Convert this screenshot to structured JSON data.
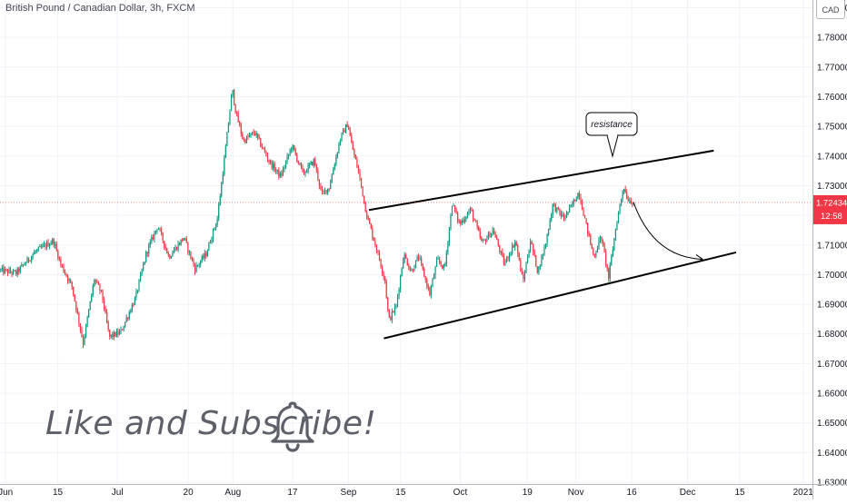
{
  "header": {
    "symbol_title": "British Pound / Canadian Dollar, 3h, FXCM",
    "currency": "CAD"
  },
  "price_tag": {
    "price": "1.72434",
    "countdown": "12:58",
    "color": "#f23645"
  },
  "annotations": {
    "callout": "resistance",
    "cta": "Like and Subscribe!",
    "bell_icon": "bell-icon"
  },
  "colors": {
    "up": "#089981",
    "down": "#f23645",
    "axis_text": "#131722",
    "grid": "#f0f3fa",
    "trendline": "#000000"
  },
  "chart_data": {
    "type": "candlestick",
    "title": "British Pound / Canadian Dollar, 3h, FXCM",
    "y_ticks": [
      "1.63000",
      "1.64000",
      "1.65000",
      "1.66000",
      "1.67000",
      "1.68000",
      "1.69000",
      "1.70000",
      "1.71000",
      "1.72000",
      "1.73000",
      "1.74000",
      "1.75000",
      "1.76000",
      "1.77000",
      "1.78000",
      "1.79000"
    ],
    "ylim": [
      1.6294,
      1.7926
    ],
    "x_ticks": [
      {
        "label": "Jun",
        "day": 0
      },
      {
        "label": "15",
        "day": 14
      },
      {
        "label": "Jul",
        "day": 30
      },
      {
        "label": "20",
        "day": 49
      },
      {
        "label": "Aug",
        "day": 61
      },
      {
        "label": "17",
        "day": 77
      },
      {
        "label": "Sep",
        "day": 92
      },
      {
        "label": "15",
        "day": 106
      },
      {
        "label": "Oct",
        "day": 122
      },
      {
        "label": "19",
        "day": 140
      },
      {
        "label": "Nov",
        "day": 153
      },
      {
        "label": "16",
        "day": 168
      },
      {
        "label": "Dec",
        "day": 183
      },
      {
        "label": "15",
        "day": 197
      },
      {
        "label": "2021",
        "day": 214
      }
    ],
    "xlim": [
      -1.5,
      216.5
    ],
    "price_path": [
      [
        -1.5,
        1.7015
      ],
      [
        3,
        1.7005
      ],
      [
        8,
        1.7075
      ],
      [
        13,
        1.7115
      ],
      [
        15,
        1.7035
      ],
      [
        18,
        1.696
      ],
      [
        21,
        1.677
      ],
      [
        24,
        1.6985
      ],
      [
        26,
        1.6935
      ],
      [
        28,
        1.679
      ],
      [
        31,
        1.6805
      ],
      [
        35,
        1.692
      ],
      [
        38,
        1.7075
      ],
      [
        41,
        1.7165
      ],
      [
        44,
        1.706
      ],
      [
        48,
        1.7125
      ],
      [
        51,
        1.702
      ],
      [
        54,
        1.707
      ],
      [
        57,
        1.719
      ],
      [
        59,
        1.74
      ],
      [
        61,
        1.7625
      ],
      [
        62,
        1.7545
      ],
      [
        64,
        1.745
      ],
      [
        67,
        1.748
      ],
      [
        69,
        1.743
      ],
      [
        71,
        1.738
      ],
      [
        74,
        1.733
      ],
      [
        77,
        1.7435
      ],
      [
        80,
        1.734
      ],
      [
        83,
        1.7385
      ],
      [
        85,
        1.727
      ],
      [
        87,
        1.7295
      ],
      [
        90,
        1.746
      ],
      [
        92,
        1.751
      ],
      [
        93,
        1.744
      ],
      [
        95,
        1.734
      ],
      [
        97,
        1.7205
      ],
      [
        100,
        1.7075
      ],
      [
        102,
        1.698
      ],
      [
        103,
        1.6845
      ],
      [
        105,
        1.6895
      ],
      [
        107,
        1.707
      ],
      [
        109,
        1.701
      ],
      [
        111,
        1.706
      ],
      [
        114,
        1.6935
      ],
      [
        116,
        1.705
      ],
      [
        118,
        1.702
      ],
      [
        120,
        1.724
      ],
      [
        122,
        1.717
      ],
      [
        125,
        1.722
      ],
      [
        128,
        1.7105
      ],
      [
        131,
        1.715
      ],
      [
        134,
        1.7035
      ],
      [
        137,
        1.7115
      ],
      [
        139,
        1.6975
      ],
      [
        141,
        1.7115
      ],
      [
        143,
        1.701
      ],
      [
        145,
        1.71
      ],
      [
        147,
        1.7235
      ],
      [
        150,
        1.719
      ],
      [
        152,
        1.723
      ],
      [
        154,
        1.728
      ],
      [
        156,
        1.7165
      ],
      [
        158,
        1.706
      ],
      [
        160,
        1.713
      ],
      [
        162,
        1.699
      ],
      [
        164,
        1.7165
      ],
      [
        166,
        1.73
      ],
      [
        167,
        1.7258
      ],
      [
        168.5,
        1.7243
      ]
    ],
    "trendlines": [
      {
        "name": "upper channel line",
        "points": [
          [
            97.5,
            1.7218
          ],
          [
            190,
            1.7418
          ]
        ]
      },
      {
        "name": "lower channel line",
        "points": [
          [
            101.5,
            1.6785
          ],
          [
            196,
            1.7075
          ]
        ]
      }
    ],
    "projection": {
      "from": [
        168.5,
        1.7243
      ],
      "to": [
        187,
        1.7052
      ]
    }
  }
}
